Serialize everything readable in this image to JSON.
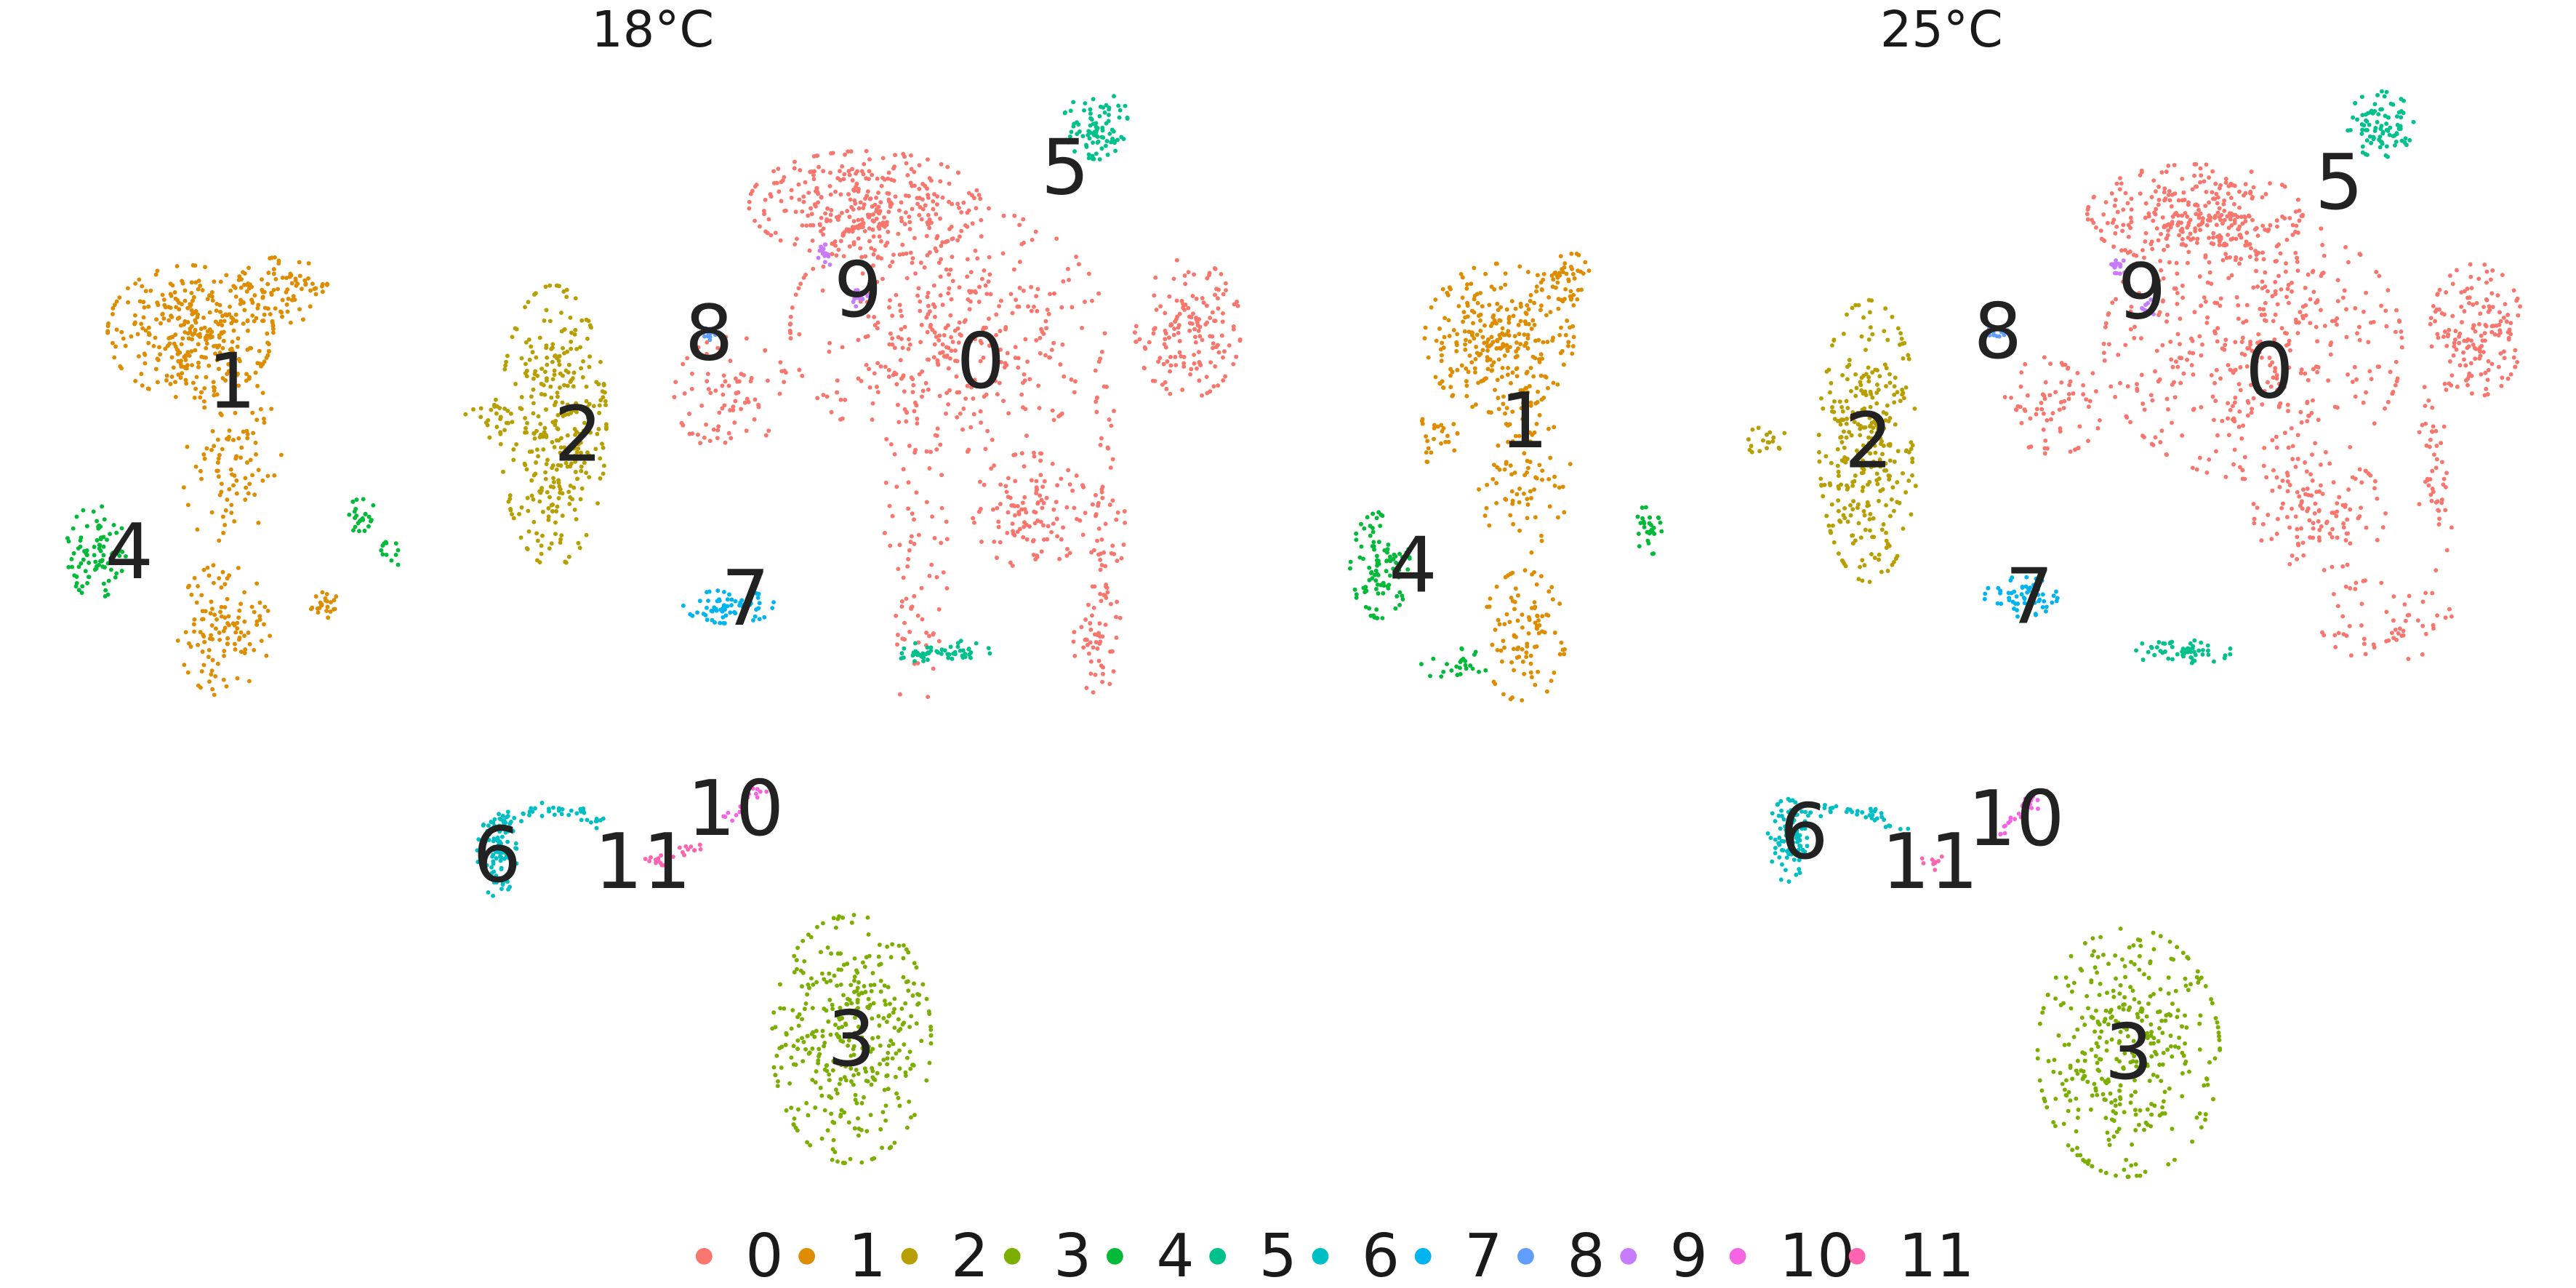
{
  "chart_data": {
    "type": "scatter",
    "panels": [
      {
        "title": "18°C",
        "clusters": [
          {
            "id": "0",
            "label": "0",
            "color": "#F8766D",
            "centroid": [
              592,
              218
            ]
          },
          {
            "id": "1",
            "label": "1",
            "color": "#DE8C00",
            "centroid": [
              140,
              230
            ]
          },
          {
            "id": "2",
            "label": "2",
            "color": "#B79F00",
            "centroid": [
              349,
              262
            ]
          },
          {
            "id": "3",
            "label": "3",
            "color": "#7CAE00",
            "centroid": [
              514,
              627
            ]
          },
          {
            "id": "4",
            "label": "4",
            "color": "#00BA38",
            "centroid": [
              78,
              333
            ]
          },
          {
            "id": "5",
            "label": "5",
            "color": "#00C08B",
            "centroid": [
              643,
              101
            ]
          },
          {
            "id": "6",
            "label": "6",
            "color": "#00BFC4",
            "centroid": [
              300,
              516
            ]
          },
          {
            "id": "7",
            "label": "7",
            "color": "#00B4F0",
            "centroid": [
              450,
              361
            ]
          },
          {
            "id": "8",
            "label": "8",
            "color": "#619CFF",
            "centroid": [
              428,
              201
            ]
          },
          {
            "id": "9",
            "label": "9",
            "color": "#C77CFF",
            "centroid": [
              518,
              175
            ]
          },
          {
            "id": "10",
            "label": "10",
            "color": "#F564E3",
            "centroid": [
              444,
              488
            ]
          },
          {
            "id": "11",
            "label": "11",
            "color": "#FF64B0",
            "centroid": [
              388,
              520
            ]
          }
        ]
      },
      {
        "title": "25°C",
        "clusters": [
          {
            "id": "0",
            "label": "0",
            "color": "#F8766D",
            "centroid": [
              1370,
              224
            ]
          },
          {
            "id": "1",
            "label": "1",
            "color": "#DE8C00",
            "centroid": [
              920,
              254
            ]
          },
          {
            "id": "2",
            "label": "2",
            "color": "#B79F00",
            "centroid": [
              1128,
              266
            ]
          },
          {
            "id": "3",
            "label": "3",
            "color": "#7CAE00",
            "centroid": [
              1285,
              635
            ]
          },
          {
            "id": "4",
            "label": "4",
            "color": "#00BA38",
            "centroid": [
              853,
              341
            ]
          },
          {
            "id": "5",
            "label": "5",
            "color": "#00C08B",
            "centroid": [
              1412,
              110
            ]
          },
          {
            "id": "6",
            "label": "6",
            "color": "#00BFC4",
            "centroid": [
              1089,
              502
            ]
          },
          {
            "id": "7",
            "label": "7",
            "color": "#00B4F0",
            "centroid": [
              1225,
              360
            ]
          },
          {
            "id": "8",
            "label": "8",
            "color": "#619CFF",
            "centroid": [
              1206,
              200
            ]
          },
          {
            "id": "9",
            "label": "9",
            "color": "#C77CFF",
            "centroid": [
              1293,
              176
            ]
          },
          {
            "id": "10",
            "label": "10",
            "color": "#F564E3",
            "centroid": [
              1217,
              494
            ]
          },
          {
            "id": "11",
            "label": "11",
            "color": "#FF64B0",
            "centroid": [
              1165,
              520
            ]
          }
        ]
      }
    ],
    "legend": {
      "position": "bottom",
      "entries": [
        {
          "label": "0",
          "color": "#F8766D"
        },
        {
          "label": "1",
          "color": "#DE8C00"
        },
        {
          "label": "2",
          "color": "#B79F00"
        },
        {
          "label": "3",
          "color": "#7CAE00"
        },
        {
          "label": "4",
          "color": "#00BA38"
        },
        {
          "label": "5",
          "color": "#00C08B"
        },
        {
          "label": "6",
          "color": "#00BFC4"
        },
        {
          "label": "7",
          "color": "#00B4F0"
        },
        {
          "label": "8",
          "color": "#619CFF"
        },
        {
          "label": "9",
          "color": "#C77CFF"
        },
        {
          "label": "10",
          "color": "#F564E3"
        },
        {
          "label": "11",
          "color": "#FF64B0"
        }
      ]
    },
    "axes_visible": false,
    "grid": false
  }
}
